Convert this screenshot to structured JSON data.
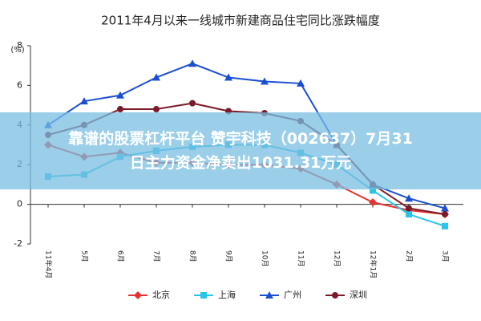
{
  "chart_data": {
    "type": "line",
    "title": "2011年4月以来一线城市新建商品住宅同比涨跌幅度",
    "y_unit": "(%)",
    "categories": [
      "11年4月",
      "5月",
      "6月",
      "7月",
      "8月",
      "9月",
      "10月",
      "11月",
      "12月",
      "12年1月",
      "2月",
      "3月"
    ],
    "series": [
      {
        "name": "北京",
        "color": "#e8312f",
        "marker": "diamond",
        "values": [
          3.0,
          2.4,
          2.6,
          2.1,
          2.1,
          2.0,
          2.0,
          1.8,
          1.0,
          0.1,
          -0.3,
          -0.5
        ]
      },
      {
        "name": "上海",
        "color": "#29c4e8",
        "marker": "square",
        "values": [
          1.4,
          1.5,
          2.4,
          2.7,
          2.9,
          3.0,
          3.0,
          2.6,
          2.0,
          0.7,
          -0.5,
          -1.1
        ]
      },
      {
        "name": "广州",
        "color": "#1a4fd1",
        "marker": "triangle",
        "values": [
          4.0,
          5.2,
          5.5,
          6.4,
          7.1,
          6.4,
          6.2,
          6.1,
          3.0,
          1.0,
          0.3,
          -0.2
        ]
      },
      {
        "name": "深圳",
        "color": "#7a1a2a",
        "marker": "circle",
        "values": [
          3.5,
          4.0,
          4.8,
          4.8,
          5.1,
          4.7,
          4.6,
          4.2,
          3.0,
          1.0,
          -0.2,
          -0.5
        ]
      }
    ],
    "ylim": [
      -2,
      8
    ],
    "yticks": [
      -2,
      0,
      2,
      4,
      6,
      8
    ],
    "legend": "bottom"
  },
  "overlay": {
    "lines": [
      "靠谱的股票杠杆平台 赞宇科技（002637）7月31",
      "日主力资金净卖出1031.31万元"
    ]
  }
}
